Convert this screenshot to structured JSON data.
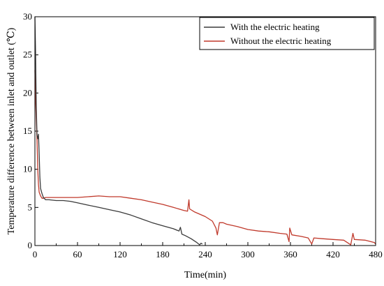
{
  "chart_data": {
    "type": "line",
    "xlabel": "Time(min)",
    "ylabel": "Temperature difference between inlet and outlet (℃)",
    "xlim": [
      0,
      480
    ],
    "ylim": [
      0,
      30
    ],
    "x_ticks": [
      "0",
      "60",
      "120",
      "180",
      "240",
      "300",
      "360",
      "420",
      "480"
    ],
    "y_ticks": [
      "0",
      "5",
      "10",
      "15",
      "20",
      "25",
      "30"
    ],
    "grid": false,
    "legend_position": "top-right",
    "series": [
      {
        "name": "With the electric heating",
        "color": "#3a3a3a",
        "points": [
          [
            0,
            30
          ],
          [
            1,
            25
          ],
          [
            2,
            18
          ],
          [
            3,
            14.5
          ],
          [
            4,
            14
          ],
          [
            5,
            14.6
          ],
          [
            6,
            12
          ],
          [
            7,
            9
          ],
          [
            8,
            7.5
          ],
          [
            10,
            6.8
          ],
          [
            12,
            6.3
          ],
          [
            15,
            6.0
          ],
          [
            20,
            6.0
          ],
          [
            30,
            5.9
          ],
          [
            40,
            5.9
          ],
          [
            50,
            5.8
          ],
          [
            60,
            5.6
          ],
          [
            75,
            5.3
          ],
          [
            90,
            5.0
          ],
          [
            105,
            4.7
          ],
          [
            120,
            4.4
          ],
          [
            135,
            4.0
          ],
          [
            150,
            3.5
          ],
          [
            165,
            3.0
          ],
          [
            180,
            2.6
          ],
          [
            195,
            2.2
          ],
          [
            203,
            1.9
          ],
          [
            205,
            2.4
          ],
          [
            207,
            1.5
          ],
          [
            212,
            1.3
          ],
          [
            220,
            0.9
          ],
          [
            228,
            0.4
          ],
          [
            232,
            0.1
          ],
          [
            234,
            0.3
          ],
          [
            236,
            0.2
          ]
        ]
      },
      {
        "name": "Without the electric heating",
        "color": "#c0392b",
        "points": [
          [
            0,
            23
          ],
          [
            1,
            19
          ],
          [
            2,
            16.5
          ],
          [
            3,
            14
          ],
          [
            4,
            10
          ],
          [
            5,
            8
          ],
          [
            6,
            7
          ],
          [
            8,
            6.5
          ],
          [
            10,
            6.2
          ],
          [
            12,
            6.2
          ],
          [
            15,
            6.3
          ],
          [
            20,
            6.3
          ],
          [
            30,
            6.3
          ],
          [
            45,
            6.3
          ],
          [
            60,
            6.3
          ],
          [
            75,
            6.4
          ],
          [
            90,
            6.5
          ],
          [
            105,
            6.4
          ],
          [
            120,
            6.4
          ],
          [
            135,
            6.2
          ],
          [
            150,
            6.0
          ],
          [
            165,
            5.7
          ],
          [
            180,
            5.4
          ],
          [
            195,
            5.0
          ],
          [
            210,
            4.6
          ],
          [
            215,
            4.5
          ],
          [
            217,
            6.0
          ],
          [
            218,
            4.8
          ],
          [
            225,
            4.4
          ],
          [
            240,
            3.8
          ],
          [
            250,
            3.2
          ],
          [
            255,
            2.3
          ],
          [
            257,
            1.4
          ],
          [
            260,
            3.0
          ],
          [
            265,
            3.0
          ],
          [
            270,
            2.8
          ],
          [
            285,
            2.5
          ],
          [
            300,
            2.1
          ],
          [
            315,
            1.9
          ],
          [
            330,
            1.8
          ],
          [
            345,
            1.6
          ],
          [
            355,
            1.5
          ],
          [
            358,
            0.5
          ],
          [
            359,
            2.3
          ],
          [
            362,
            1.4
          ],
          [
            375,
            1.2
          ],
          [
            385,
            1.0
          ],
          [
            390,
            0.2
          ],
          [
            393,
            1.0
          ],
          [
            405,
            0.9
          ],
          [
            420,
            0.8
          ],
          [
            435,
            0.7
          ],
          [
            445,
            0.1
          ],
          [
            448,
            1.6
          ],
          [
            450,
            0.8
          ],
          [
            465,
            0.7
          ],
          [
            478,
            0.4
          ],
          [
            480,
            0.2
          ]
        ]
      }
    ]
  }
}
